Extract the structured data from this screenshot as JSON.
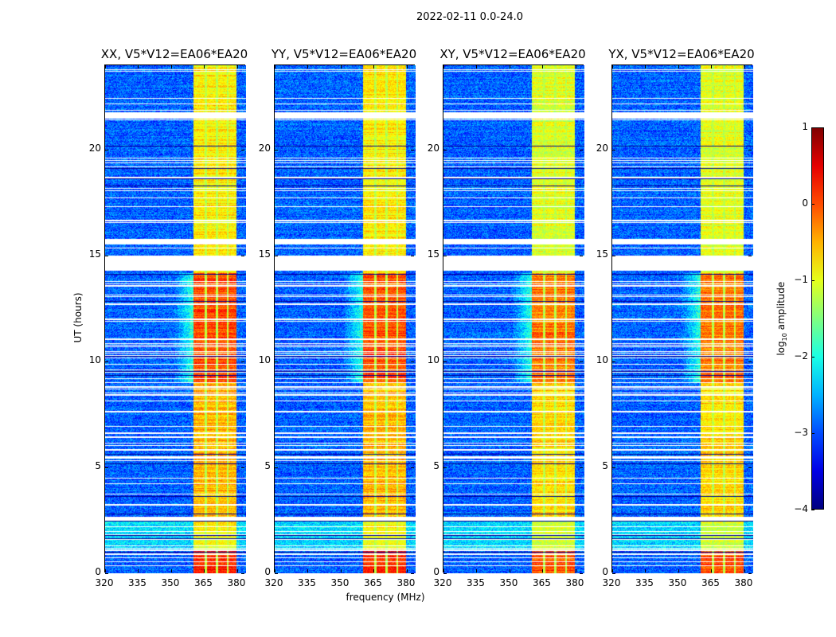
{
  "chart_data": {
    "type": "heatmap",
    "title": "2022-02-11 0.0-24.0",
    "panels": [
      {
        "title": "XX, V5*V12=EA06*EA20",
        "seed": 11
      },
      {
        "title": "YY, V5*V12=EA06*EA20",
        "seed": 23
      },
      {
        "title": "XY, V5*V12=EA06*EA20",
        "seed": 37
      },
      {
        "title": "YX, V5*V12=EA06*EA20",
        "seed": 51
      }
    ],
    "xlabel": "frequency (MHz)",
    "ylabel": "UT (hours)",
    "xlim": [
      320,
      384
    ],
    "ylim": [
      0,
      24
    ],
    "xticks": [
      "320",
      "335",
      "350",
      "365",
      "380"
    ],
    "xtick_values": [
      320,
      335,
      350,
      365,
      380
    ],
    "yticks": [
      "0",
      "5",
      "10",
      "15",
      "20"
    ],
    "ytick_values": [
      0,
      5,
      10,
      15,
      20
    ],
    "colorbar": {
      "label": "log10 amplitude",
      "label_main": "log",
      "label_sub": "10",
      "label_rest": " amplitude",
      "range": [
        -4,
        1
      ],
      "ticks": [
        "1",
        "0",
        "−1",
        "−2",
        "−3",
        "−4"
      ],
      "tick_values": [
        1,
        0,
        -1,
        -2,
        -3,
        -4
      ],
      "colormap": "jet"
    },
    "structure": {
      "background_level": -2.9,
      "rfi_band_mhz": [
        360,
        379.5
      ],
      "rfi_band_level_hours": [
        {
          "from": 0,
          "to": 1.1,
          "level": 0.2
        },
        {
          "from": 1.1,
          "to": 2.6,
          "level": -0.9
        },
        {
          "from": 2.6,
          "to": 9,
          "level": -0.5
        },
        {
          "from": 9,
          "to": 14.2,
          "level": 0
        },
        {
          "from": 14.2,
          "to": 24,
          "level": -0.8
        }
      ],
      "bright_background_hours": [
        {
          "from": 1.1,
          "to": 2.5,
          "level": -2.3
        }
      ],
      "flagged_hours": [
        [
          2.5,
          2.7
        ],
        [
          14.3,
          15.0
        ],
        [
          15.6,
          15.8
        ],
        [
          21.5,
          21.8
        ]
      ]
    }
  }
}
